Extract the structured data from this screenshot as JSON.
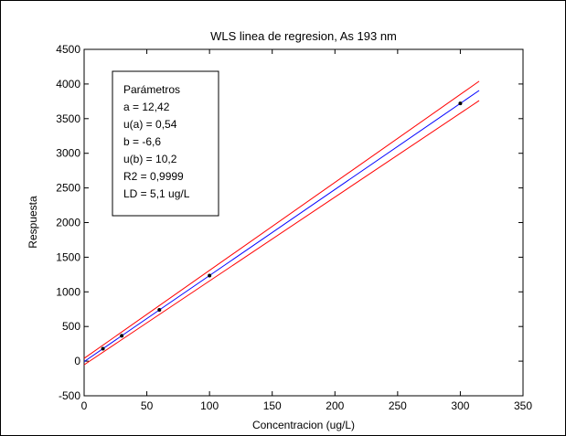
{
  "chart_data": {
    "type": "line",
    "title": "WLS linea de regresion, As 193 nm",
    "xlabel": "Concentracion (ug/L)",
    "ylabel": "Respuesta",
    "xlim": [
      0,
      350
    ],
    "ylim": [
      -500,
      4500
    ],
    "xticks": [
      0,
      50,
      100,
      150,
      200,
      250,
      300,
      350
    ],
    "yticks": [
      -500,
      0,
      500,
      1000,
      1500,
      2000,
      2500,
      3000,
      3500,
      4000,
      4500
    ],
    "grid": false,
    "points": {
      "x": [
        15,
        30,
        60,
        100,
        300
      ],
      "y": [
        180,
        365,
        740,
        1235,
        3720
      ],
      "color": "#000000"
    },
    "series": [
      {
        "x": [
          0,
          315
        ],
        "y": [
          -6.6,
          3906
        ],
        "color": "#0000ff"
      },
      {
        "x": [
          0,
          315
        ],
        "y": [
          40,
          4040
        ],
        "color": "#ff0000"
      },
      {
        "x": [
          0,
          315
        ],
        "y": [
          -53,
          3760
        ],
        "color": "#ff0000"
      }
    ],
    "annotation": {
      "lines": [
        "Parámetros",
        "a = 12,42",
        "u(a) = 0,54",
        "b = -6,6",
        "u(b) = 10,2",
        "R2 = 0,9999",
        "LD = 5,1 ug/L"
      ]
    }
  }
}
